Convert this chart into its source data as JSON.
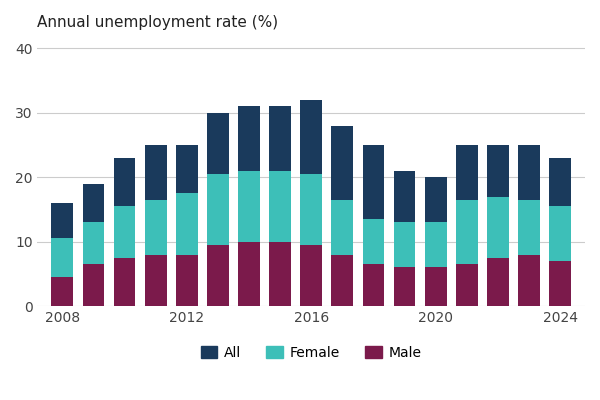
{
  "years": [
    2008,
    2009,
    2010,
    2011,
    2012,
    2013,
    2014,
    2015,
    2016,
    2017,
    2018,
    2019,
    2020,
    2021,
    2022,
    2023,
    2024
  ],
  "male": [
    4.5,
    6.5,
    7.5,
    8.0,
    8.0,
    9.5,
    10.0,
    10.0,
    9.5,
    8.0,
    6.5,
    6.0,
    6.0,
    6.5,
    7.5,
    8.0,
    7.0
  ],
  "female": [
    6.0,
    6.5,
    8.0,
    8.5,
    9.5,
    11.0,
    11.0,
    11.0,
    11.0,
    8.5,
    7.0,
    7.0,
    7.0,
    10.0,
    9.5,
    8.5,
    8.5
  ],
  "all": [
    5.5,
    6.0,
    7.5,
    8.5,
    7.5,
    9.5,
    10.0,
    10.0,
    11.5,
    11.5,
    11.5,
    8.0,
    7.0,
    8.5,
    8.0,
    8.5,
    7.5
  ],
  "color_male": "#7b1a4b",
  "color_female": "#3dbfb8",
  "color_all": "#1a3a5c",
  "title": "Annual unemployment rate (%)",
  "yticks": [
    0,
    10,
    20,
    30,
    40
  ],
  "ylim": [
    0,
    42
  ],
  "xticks": [
    2008,
    2012,
    2016,
    2020,
    2024
  ],
  "legend_labels": [
    "All",
    "Female",
    "Male"
  ],
  "bar_width": 0.7
}
